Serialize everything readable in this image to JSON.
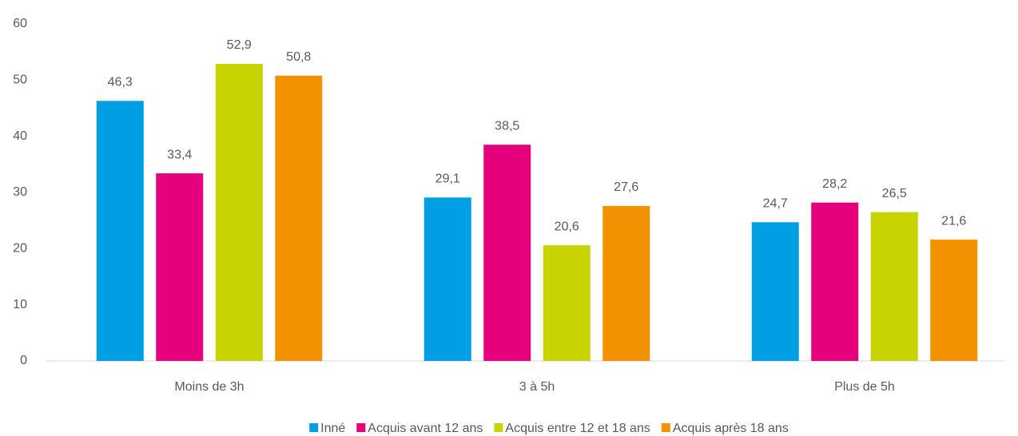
{
  "chart_data": {
    "type": "bar",
    "categories": [
      "Moins de 3h",
      "3 à 5h",
      "Plus de 5h"
    ],
    "series": [
      {
        "name": "Inné",
        "color": "#009fe3",
        "values": [
          46.3,
          29.1,
          24.7
        ],
        "value_labels": [
          "46,3",
          "29,1",
          "24,7"
        ]
      },
      {
        "name": "Acquis avant 12 ans",
        "color": "#e6007e",
        "values": [
          33.4,
          38.5,
          28.2
        ],
        "value_labels": [
          "33,4",
          "38,5",
          "28,2"
        ]
      },
      {
        "name": "Acquis entre 12 et 18 ans",
        "color": "#c8d400",
        "values": [
          52.9,
          20.6,
          26.5
        ],
        "value_labels": [
          "52,9",
          "20,6",
          "26,5"
        ]
      },
      {
        "name": "Acquis après 18 ans",
        "color": "#f39200",
        "values": [
          50.8,
          27.6,
          21.6
        ],
        "value_labels": [
          "50,8",
          "27,6",
          "21,6"
        ]
      }
    ],
    "ylim": [
      0,
      60
    ],
    "yticks": [
      0,
      10,
      20,
      30,
      40,
      50,
      60
    ],
    "grid": false,
    "legend": "bottom"
  }
}
